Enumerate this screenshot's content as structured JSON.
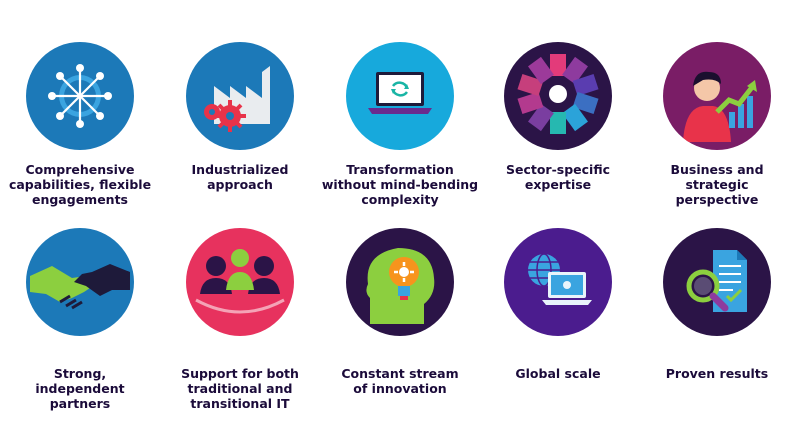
{
  "row1": [
    {
      "label": "Comprehensive\ncapabilities, flexible\nengagements",
      "icon": "network-hub-icon",
      "color": "#1c79b8"
    },
    {
      "label": "Industrialized\napproach",
      "icon": "factory-gears-icon",
      "color": "#1c79b8"
    },
    {
      "label": "Transformation\nwithout mind-bending\ncomplexity",
      "icon": "laptop-sync-icon",
      "color": "#17a9dc"
    },
    {
      "label": "Sector-specific\nexpertise",
      "icon": "color-wheel-icon",
      "color": "#2b1447"
    },
    {
      "label": "Business and\nstrategic\nperspective",
      "icon": "person-growth-chart-icon",
      "color": "#7a1d66"
    }
  ],
  "row2": [
    {
      "label": "Strong,\nindependent\npartners",
      "icon": "handshake-icon",
      "color": "#1c79b8"
    },
    {
      "label": "Support for both\ntraditional and\ntransitional IT",
      "icon": "team-people-icon",
      "color": "#e7325e"
    },
    {
      "label": "Constant stream\nof innovation",
      "icon": "head-lightbulb-icon",
      "color": "#2b1447"
    },
    {
      "label": "Global scale",
      "icon": "globe-laptop-icon",
      "color": "#4b1c8e"
    },
    {
      "label": "Proven results",
      "icon": "document-magnifier-icon",
      "color": "#2b1447"
    }
  ]
}
